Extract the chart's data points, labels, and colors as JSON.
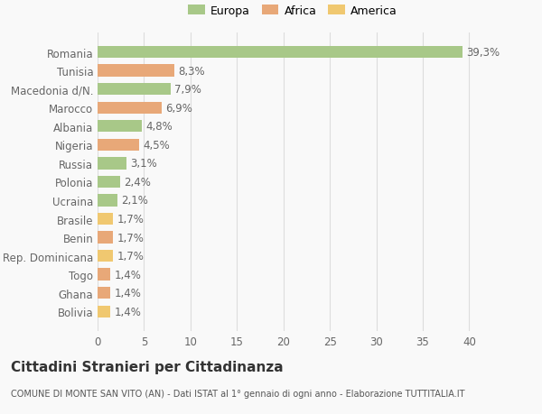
{
  "categories": [
    "Bolivia",
    "Ghana",
    "Togo",
    "Rep. Dominicana",
    "Benin",
    "Brasile",
    "Ucraina",
    "Polonia",
    "Russia",
    "Nigeria",
    "Albania",
    "Marocco",
    "Macedonia d/N.",
    "Tunisia",
    "Romania"
  ],
  "values": [
    1.4,
    1.4,
    1.4,
    1.7,
    1.7,
    1.7,
    2.1,
    2.4,
    3.1,
    4.5,
    4.8,
    6.9,
    7.9,
    8.3,
    39.3
  ],
  "colors": [
    "#f0c870",
    "#e8a878",
    "#e8a878",
    "#f0c870",
    "#e8a878",
    "#f0c870",
    "#a8c888",
    "#a8c888",
    "#a8c888",
    "#e8a878",
    "#a8c888",
    "#e8a878",
    "#a8c888",
    "#e8a878",
    "#a8c888"
  ],
  "legend_labels": [
    "Europa",
    "Africa",
    "America"
  ],
  "legend_colors": [
    "#a8c888",
    "#e8a878",
    "#f0c870"
  ],
  "title": "Cittadini Stranieri per Cittadinanza",
  "subtitle": "COMUNE DI MONTE SAN VITO (AN) - Dati ISTAT al 1° gennaio di ogni anno - Elaborazione TUTTITALIA.IT",
  "xlim": [
    0,
    42
  ],
  "xticks": [
    0,
    5,
    10,
    15,
    20,
    25,
    30,
    35,
    40
  ],
  "bar_height": 0.65,
  "background_color": "#f9f9f9",
  "grid_color": "#dddddd",
  "label_fontsize": 8.5,
  "tick_fontsize": 8.5,
  "title_fontsize": 11,
  "subtitle_fontsize": 7
}
